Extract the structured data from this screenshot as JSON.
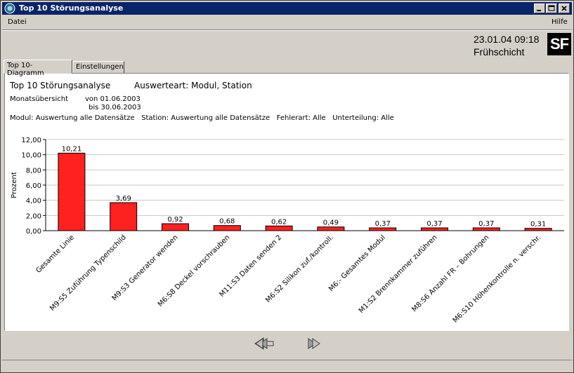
{
  "window": {
    "title": "Top 10 Störungsanalyse"
  },
  "menu": {
    "file": "Datei",
    "help": "Hilfe"
  },
  "header": {
    "datetime": "23.01.04 09:18",
    "shift": "Frühschicht",
    "logo": "SF"
  },
  "tabs": [
    {
      "label": "Top 10-Diagramm"
    },
    {
      "label": "Einstellungen"
    }
  ],
  "report": {
    "title": "Top 10 Störungsanalyse",
    "evaluation_type": "Auswerteart: Modul, Station",
    "period_label": "Monatsübersicht",
    "from": "von 01.06.2003",
    "to": "bis 30.06.2003",
    "filters": "Modul: Auswertung alle Datensätze   Station: Auswertung alle Datensätze   Fehlerart: Alle   Unterteilung: Alle"
  },
  "chart_data": {
    "type": "bar",
    "ylabel": "Prozent",
    "ylim": [
      0,
      12
    ],
    "yticks": [
      "0,00",
      "2,00",
      "4,00",
      "6,00",
      "8,00",
      "10,00",
      "12,00"
    ],
    "grid": true,
    "bar_color": "#ff2020",
    "categories": [
      "Gesamte Linie",
      "M9:S5  Zuführung Typenschild",
      "M9:S3  Generator wenden",
      "M6:S8  Deckel vorschrauben",
      "M11:S3  Daten senden 2",
      "M6:S2  Silikon zuf./kontroll.",
      "M6:-  Gesamtes Modul",
      "M1:S2  Brennkammer zuführen",
      "M8:S6  Anzahl FR – Bohrungen",
      "M6:S10  Höhenkontrolle n. verschr."
    ],
    "values": [
      10.21,
      3.69,
      0.92,
      0.68,
      0.62,
      0.49,
      0.37,
      0.37,
      0.37,
      0.31
    ],
    "value_labels": [
      "10,21",
      "3,69",
      "0,92",
      "0,68",
      "0,62",
      "0,49",
      "0,37",
      "0,37",
      "0,37",
      "0,31"
    ]
  },
  "nav": {
    "prev": "previous-icon",
    "next": "next-icon"
  },
  "colors": {
    "titlebar": "#0a246a",
    "face": "#d4d0c8"
  }
}
